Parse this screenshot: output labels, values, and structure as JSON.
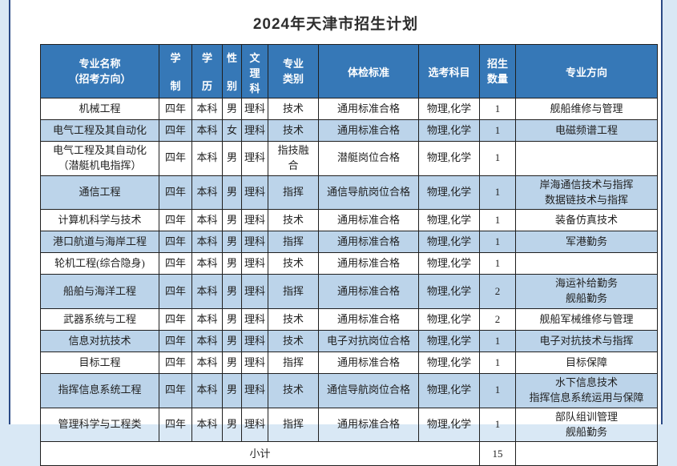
{
  "title": "2024年天津市招生计划",
  "colors": {
    "header_bg": "#3678b7",
    "row_alt": "#bcd4ea",
    "frame": "#2a4a86",
    "page_bg": "#d9e8f5"
  },
  "table": {
    "headers": {
      "major": "专业名称\n（招考方向）",
      "duration": "学制",
      "degree": "学历",
      "gender": "性别",
      "track": "文理科",
      "category": "专业\n类别",
      "medical": "体检标准",
      "subjects": "选考科目",
      "quota": "招生\n数量",
      "direction": "专业方向"
    },
    "rows": [
      {
        "major": "机械工程",
        "duration": "四年",
        "degree": "本科",
        "gender": "男",
        "track": "理科",
        "category": "技术",
        "medical": "通用标准合格",
        "subjects": "物理,化学",
        "quota": "1",
        "direction": "舰船维修与管理"
      },
      {
        "major": "电气工程及其自动化",
        "duration": "四年",
        "degree": "本科",
        "gender": "女",
        "track": "理科",
        "category": "技术",
        "medical": "通用标准合格",
        "subjects": "物理,化学",
        "quota": "1",
        "direction": "电磁频谱工程"
      },
      {
        "major": "电气工程及其自动化\n（潜艇机电指挥）",
        "duration": "四年",
        "degree": "本科",
        "gender": "男",
        "track": "理科",
        "category": "指技融\n合",
        "medical": "潜艇岗位合格",
        "subjects": "物理,化学",
        "quota": "1",
        "direction": ""
      },
      {
        "major": "通信工程",
        "duration": "四年",
        "degree": "本科",
        "gender": "男",
        "track": "理科",
        "category": "指挥",
        "medical": "通信导航岗位合格",
        "subjects": "物理,化学",
        "quota": "1",
        "direction": "岸海通信技术与指挥\n数据链技术与指挥"
      },
      {
        "major": "计算机科学与技术",
        "duration": "四年",
        "degree": "本科",
        "gender": "男",
        "track": "理科",
        "category": "技术",
        "medical": "通用标准合格",
        "subjects": "物理,化学",
        "quota": "1",
        "direction": "装备仿真技术"
      },
      {
        "major": "港口航道与海岸工程",
        "duration": "四年",
        "degree": "本科",
        "gender": "男",
        "track": "理科",
        "category": "指挥",
        "medical": "通用标准合格",
        "subjects": "物理,化学",
        "quota": "1",
        "direction": "军港勤务"
      },
      {
        "major": "轮机工程(综合隐身)",
        "duration": "四年",
        "degree": "本科",
        "gender": "男",
        "track": "理科",
        "category": "技术",
        "medical": "通用标准合格",
        "subjects": "物理,化学",
        "quota": "1",
        "direction": ""
      },
      {
        "major": "船舶与海洋工程",
        "duration": "四年",
        "degree": "本科",
        "gender": "男",
        "track": "理科",
        "category": "指挥",
        "medical": "通用标准合格",
        "subjects": "物理,化学",
        "quota": "2",
        "direction": "海运补给勤务\n舰船勤务"
      },
      {
        "major": "武器系统与工程",
        "duration": "四年",
        "degree": "本科",
        "gender": "男",
        "track": "理科",
        "category": "技术",
        "medical": "通用标准合格",
        "subjects": "物理,化学",
        "quota": "2",
        "direction": "舰船军械维修与管理"
      },
      {
        "major": "信息对抗技术",
        "duration": "四年",
        "degree": "本科",
        "gender": "男",
        "track": "理科",
        "category": "技术",
        "medical": "电子对抗岗位合格",
        "subjects": "物理,化学",
        "quota": "1",
        "direction": "电子对抗技术与指挥"
      },
      {
        "major": "目标工程",
        "duration": "四年",
        "degree": "本科",
        "gender": "男",
        "track": "理科",
        "category": "指挥",
        "medical": "通用标准合格",
        "subjects": "物理,化学",
        "quota": "1",
        "direction": "目标保障"
      },
      {
        "major": "指挥信息系统工程",
        "duration": "四年",
        "degree": "本科",
        "gender": "男",
        "track": "理科",
        "category": "技术",
        "medical": "通信导航岗位合格",
        "subjects": "物理,化学",
        "quota": "1",
        "direction": "水下信息技术\n指挥信息系统运用与保障"
      },
      {
        "major": "管理科学与工程类",
        "duration": "四年",
        "degree": "本科",
        "gender": "男",
        "track": "理科",
        "category": "指挥",
        "medical": "通用标准合格",
        "subjects": "物理,化学",
        "quota": "1",
        "direction": "部队组训管理\n舰船勤务"
      }
    ],
    "footer": {
      "label": "小计",
      "total": "15"
    }
  }
}
